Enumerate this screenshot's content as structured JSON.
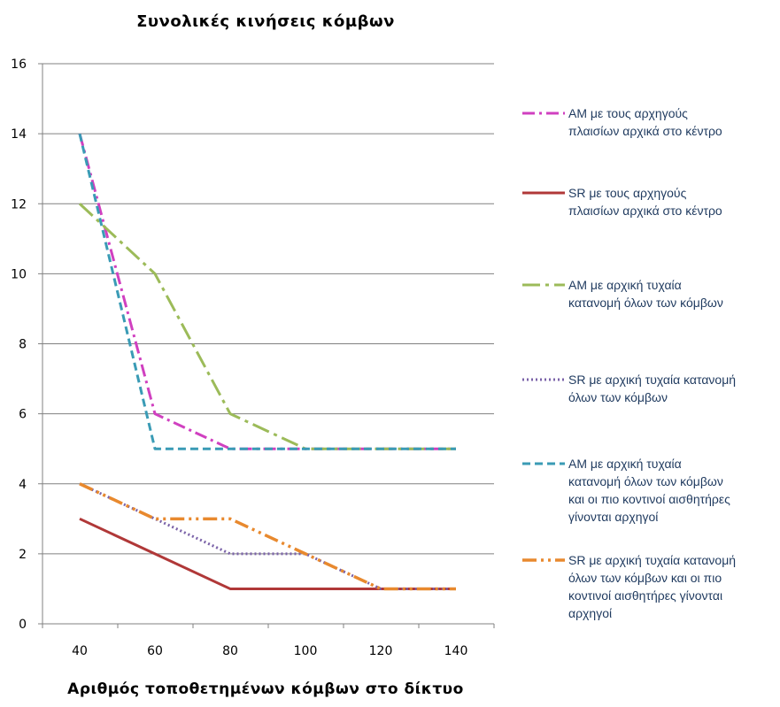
{
  "chart_data": {
    "type": "line",
    "title": "Συνολικές κινήσεις κόμβων",
    "xlabel": "Αριθμός τοποθετημένων κόμβων στο δίκτυο",
    "ylabel": "",
    "categories": [
      "40",
      "60",
      "80",
      "100",
      "120",
      "140"
    ],
    "x": [
      40,
      60,
      80,
      100,
      120,
      140
    ],
    "ylim": [
      0,
      16
    ],
    "yticks": [
      "0",
      "2",
      "4",
      "6",
      "8",
      "10",
      "12",
      "14",
      "16"
    ],
    "grid": true,
    "legend_position": "right",
    "series": [
      {
        "name_lines": [
          "AM με τους αρχηγούς",
          "πλαισίων αρχικά στο κέντρο"
        ],
        "values": [
          14,
          6,
          5,
          5,
          5,
          5
        ],
        "color": "#d040c0",
        "dash": "dashdot"
      },
      {
        "name_lines": [
          "SR με τους αρχηγούς",
          "πλαισίων αρχικά στο κέντρο"
        ],
        "values": [
          3,
          2,
          1,
          1,
          1,
          1
        ],
        "color": "#b03838",
        "dash": "solid"
      },
      {
        "name_lines": [
          "AM με αρχική τυχαία",
          "κατανομή όλων των κόμβων"
        ],
        "values": [
          12,
          10,
          6,
          5,
          5,
          5
        ],
        "color": "#9cbb59",
        "dash": "longdashdot"
      },
      {
        "name_lines": [
          "SR με αρχική τυχαία κατανομή",
          "όλων των κόμβων"
        ],
        "values": [
          4,
          3,
          2,
          2,
          1,
          1
        ],
        "color": "#7a62a8",
        "dash": "dotted"
      },
      {
        "name_lines": [
          "AM με αρχική τυχαία",
          "κατανομή όλων των κόμβων",
          "και οι πιο κοντινοί αισθητήρες",
          "γίνονται αρχηγοί"
        ],
        "values": [
          14,
          5,
          5,
          5,
          5,
          5
        ],
        "color": "#3a9bb5",
        "dash": "dashed"
      },
      {
        "name_lines": [
          "SR με αρχική τυχαία κατανομή",
          "όλων των κόμβων και οι πιο",
          "κοντινοί αισθητήρες γίνονται",
          "αρχηγοί"
        ],
        "values": [
          4,
          3,
          3,
          2,
          1,
          1
        ],
        "color": "#e8892e",
        "dash": "dashdotdot"
      }
    ]
  }
}
